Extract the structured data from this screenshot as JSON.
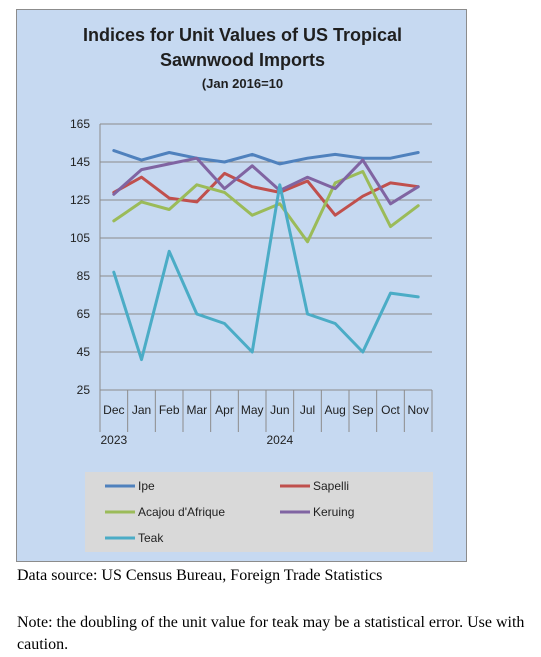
{
  "title_lines": [
    "Indices for Unit Values of US Tropical",
    "Sawnwood Imports",
    "(Jan 2016=10"
  ],
  "source_text": "Data source: US Census Bureau, Foreign Trade Statistics",
  "note_text": "Note: the doubling of the unit value for teak may be a statistical error.  Use with caution.",
  "chart_data": {
    "type": "line",
    "title": "Indices for Unit Values of US Tropical Sawnwood Imports (Jan 2016=10",
    "categories": [
      "Dec",
      "Jan",
      "Feb",
      "Mar",
      "Apr",
      "May",
      "Jun",
      "Jul",
      "Aug",
      "Sep",
      "Oct",
      "Nov"
    ],
    "year_labels": [
      {
        "label": "2023",
        "at": "Dec"
      },
      {
        "label": "2024",
        "at": "Jun"
      }
    ],
    "ylim": [
      25,
      165
    ],
    "yticks": [
      25,
      45,
      65,
      85,
      105,
      125,
      145,
      165
    ],
    "grid": true,
    "legend_position": "bottom",
    "series": [
      {
        "name": "Ipe",
        "color": "#4f81bd",
        "values": [
          151,
          146,
          150,
          147,
          145,
          149,
          144,
          147,
          149,
          147,
          147,
          150
        ]
      },
      {
        "name": "Sapelli",
        "color": "#c0504d",
        "values": [
          129,
          137,
          126,
          124,
          139,
          132,
          129,
          135,
          117,
          127,
          134,
          132
        ]
      },
      {
        "name": "Acajou d'Afrique",
        "color": "#9bbb59",
        "values": [
          114,
          124,
          120,
          133,
          129,
          117,
          123,
          103,
          134,
          140,
          111,
          122
        ]
      },
      {
        "name": "Keruing",
        "color": "#8064a2",
        "values": [
          128,
          141,
          144,
          147,
          131,
          143,
          130,
          137,
          131,
          146,
          123,
          132
        ]
      },
      {
        "name": "Teak",
        "color": "#4bacc6",
        "values": [
          87,
          41,
          98,
          65,
          60,
          45,
          133,
          65,
          60,
          45,
          76,
          74
        ]
      }
    ]
  }
}
